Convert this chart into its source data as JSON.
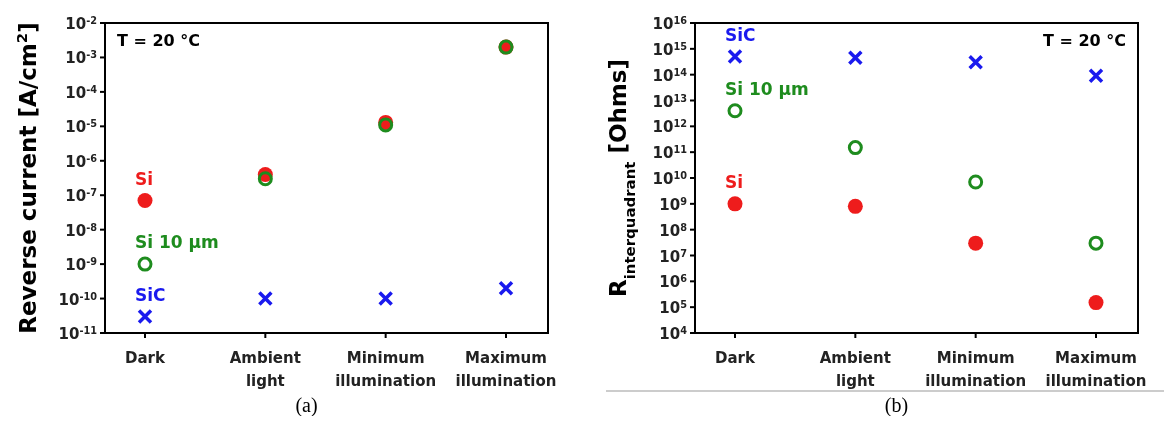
{
  "chart_data": [
    {
      "type": "scatter",
      "ylabel": "Reverse current [A/cm$^{2}$]",
      "categories": [
        "Dark",
        "Ambient light",
        "Minimum illumination",
        "Maximum illumination"
      ],
      "log": "y",
      "ylim": [
        1e-11,
        0.01
      ],
      "yticks": [
        {
          "value": 1e-11,
          "label": "10$^{-11}$"
        },
        {
          "value": 1e-10,
          "label": "10$^{-10}$"
        },
        {
          "value": 1e-09,
          "label": "10$^{-9}$"
        },
        {
          "value": 1e-08,
          "label": "10$^{-8}$"
        },
        {
          "value": 1e-07,
          "label": "10$^{-7}$"
        },
        {
          "value": 1e-06,
          "label": "10$^{-6}$"
        },
        {
          "value": 1e-05,
          "label": "10$^{-5}$"
        },
        {
          "value": 0.0001,
          "label": "10$^{-4}$"
        },
        {
          "value": 0.001,
          "label": "10$^{-3}$"
        },
        {
          "value": 0.01,
          "label": "10$^{-2}$"
        }
      ],
      "grid": false,
      "annotations": [
        "T = 20 °C",
        "(a)"
      ],
      "series": [
        {
          "name": "Si",
          "color": "#ee1c1c",
          "marker": "circle",
          "values": [
            7e-08,
            4e-07,
            1.3e-05,
            0.002
          ]
        },
        {
          "name": "Si 10 μm",
          "color": "#1e8c1e",
          "marker": "circle-open",
          "values": [
            1e-09,
            3e-07,
            1.1e-05,
            0.002
          ]
        },
        {
          "name": "SiC",
          "color": "#1a1aee",
          "marker": "cross",
          "values": [
            3e-11,
            1e-10,
            1e-10,
            2e-10
          ]
        }
      ]
    },
    {
      "type": "scatter",
      "ylabel": "R$_{interquadrant}$ [Ohms]",
      "categories": [
        "Dark",
        "Ambient light",
        "Minimum illumination",
        "Maximum illumination"
      ],
      "log": "y",
      "ylim": [
        10000.0,
        1e+16
      ],
      "yticks": [
        {
          "value": 10000.0,
          "label": "10$^{4}$"
        },
        {
          "value": 100000.0,
          "label": "10$^{5}$"
        },
        {
          "value": 1000000.0,
          "label": "10$^{6}$"
        },
        {
          "value": 10000000.0,
          "label": "10$^{7}$"
        },
        {
          "value": 100000000.0,
          "label": "10$^{8}$"
        },
        {
          "value": 1000000000.0,
          "label": "10$^{9}$"
        },
        {
          "value": 10000000000.0,
          "label": "10$^{10}$"
        },
        {
          "value": 100000000000.0,
          "label": "10$^{11}$"
        },
        {
          "value": 1000000000000.0,
          "label": "10$^{12}$"
        },
        {
          "value": 10000000000000.0,
          "label": "10$^{13}$"
        },
        {
          "value": 100000000000000.0,
          "label": "10$^{14}$"
        },
        {
          "value": 1000000000000000.0,
          "label": "10$^{15}$"
        },
        {
          "value": 1e+16,
          "label": "10$^{16}$"
        }
      ],
      "grid": false,
      "annotations": [
        "T = 20 °C",
        "(b)"
      ],
      "series": [
        {
          "name": "SiC",
          "color": "#1a1aee",
          "marker": "cross",
          "values": [
            500000000000000.0,
            450000000000000.0,
            300000000000000.0,
            90000000000000.0
          ]
        },
        {
          "name": "Si 10 μm",
          "color": "#1e8c1e",
          "marker": "circle-open",
          "values": [
            4000000000000.0,
            150000000000.0,
            7000000000.0,
            30000000.0
          ]
        },
        {
          "name": "Si",
          "color": "#ee1c1c",
          "marker": "circle",
          "values": [
            1000000000.0,
            800000000.0,
            30000000.0,
            150000.0
          ]
        }
      ]
    }
  ]
}
